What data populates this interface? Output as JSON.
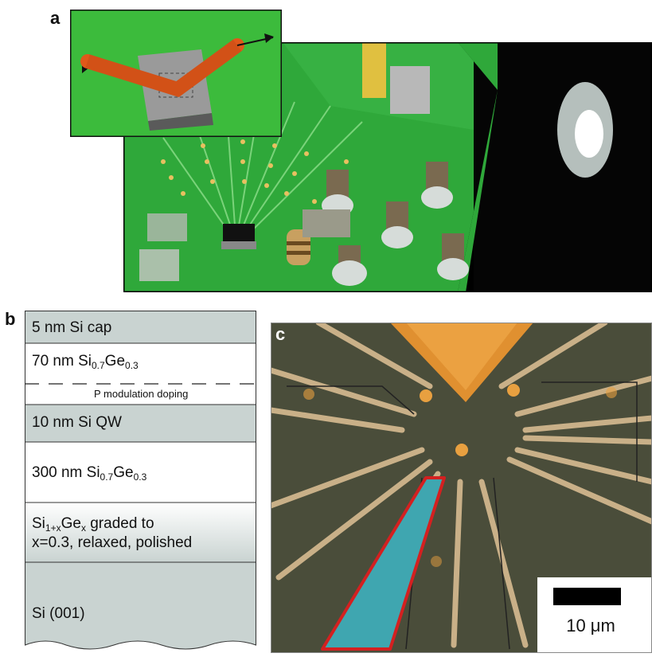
{
  "panels": {
    "a": {
      "letter": "a"
    },
    "b": {
      "letter": "b",
      "layers": [
        {
          "text": "5 nm Si cap",
          "fill": "#c9d3d1"
        },
        {
          "pre": "70 nm Si",
          "sub1": "0.7",
          "mid": "Ge",
          "sub2": "0.3",
          "fill": "#ffffff"
        },
        {
          "text": "10 nm Si QW",
          "fill": "#c9d3d1"
        },
        {
          "pre": "300 nm Si",
          "sub1": "0.7",
          "mid": "Ge",
          "sub2": "0.3",
          "fill": "#ffffff"
        },
        {
          "pre": "Si",
          "sub1": "1+x",
          "mid": "Ge",
          "sub2": "x",
          "post": " graded to",
          "line2": "x=0.3, relaxed, polished",
          "fill": "#e6eaea"
        },
        {
          "text": "Si (001)",
          "fill": "#c9d3d1"
        }
      ],
      "doping_label": "P modulation doping"
    },
    "c": {
      "letter": "c",
      "scale_bar_label": "10 μm"
    }
  },
  "colors": {
    "pcb_green": "#2fa83a",
    "inset_green": "#3cbb3c",
    "tube_orange": "#e0581a",
    "gold": "#e8a040",
    "qw_highlight": "#3fa6b0",
    "highlight_border": "#d42020"
  }
}
